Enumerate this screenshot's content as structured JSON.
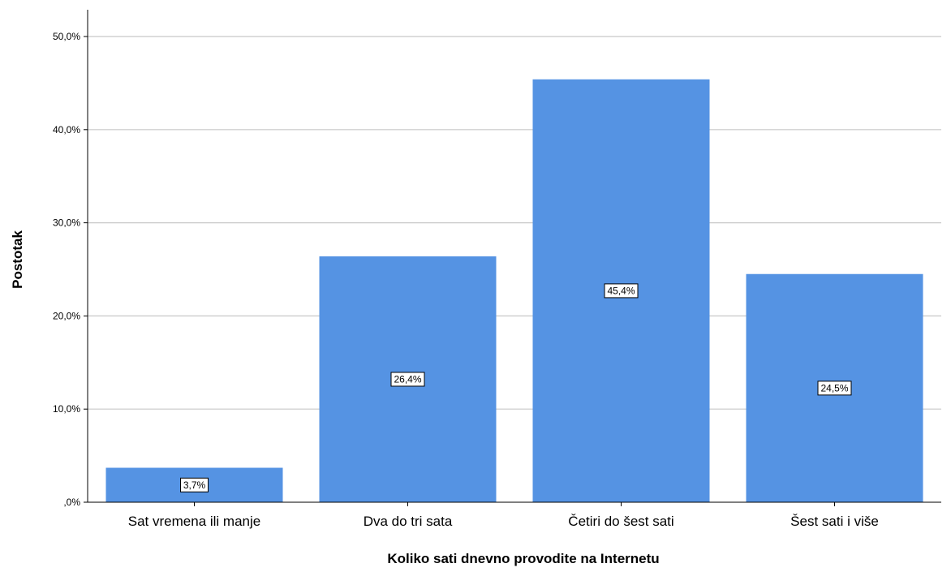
{
  "chart_data": {
    "type": "bar",
    "title": "",
    "xlabel": "Koliko sati dnevno provodite na Internetu",
    "ylabel": "Postotak",
    "categories": [
      "Sat vremena ili manje",
      "Dva do tri sata",
      "Četiri do šest sati",
      "Šest sati i više"
    ],
    "values": [
      3.7,
      26.4,
      45.4,
      24.5
    ],
    "data_labels": [
      "3,7%",
      "26,4%",
      "45,4%",
      "24,5%"
    ],
    "ylim": [
      0,
      50
    ],
    "yticks": [
      0,
      10,
      20,
      30,
      40,
      50
    ],
    "ytick_labels": [
      ",0%",
      "10,0%",
      "20,0%",
      "30,0%",
      "40,0%",
      "50,0%"
    ],
    "grid": true,
    "legend": "none",
    "bar_color": "#5593e3",
    "grid_color": "#c8c8c8",
    "axis_color": "#000000"
  }
}
